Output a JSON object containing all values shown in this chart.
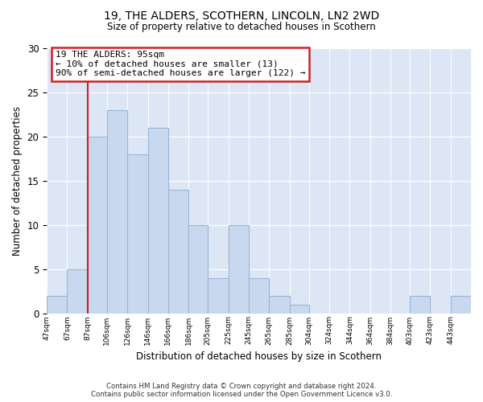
{
  "title": "19, THE ALDERS, SCOTHERN, LINCOLN, LN2 2WD",
  "subtitle": "Size of property relative to detached houses in Scothern",
  "xlabel": "Distribution of detached houses by size in Scothern",
  "ylabel": "Number of detached properties",
  "bar_color": "#c8d8ef",
  "bar_edge_color": "#9ab5d8",
  "background_color": "#ffffff",
  "grid_color": "#ffffff",
  "plot_bg_color": "#dce6f5",
  "annotation_box_edge": "#cc2222",
  "red_line_color": "#cc2222",
  "annotation_title": "19 THE ALDERS: 95sqm",
  "annotation_line1": "← 10% of detached houses are smaller (13)",
  "annotation_line2": "90% of semi-detached houses are larger (122) →",
  "footer_line1": "Contains HM Land Registry data © Crown copyright and database right 2024.",
  "footer_line2": "Contains public sector information licensed under the Open Government Licence v3.0.",
  "bins": [
    47,
    67,
    87,
    106,
    126,
    146,
    166,
    186,
    205,
    225,
    245,
    265,
    285,
    304,
    324,
    344,
    364,
    384,
    403,
    423,
    443
  ],
  "counts": [
    2,
    5,
    20,
    23,
    18,
    21,
    14,
    10,
    4,
    10,
    4,
    2,
    1,
    0,
    0,
    0,
    0,
    0,
    2,
    0,
    2
  ],
  "ylim": [
    0,
    30
  ],
  "yticks": [
    0,
    5,
    10,
    15,
    20,
    25,
    30
  ],
  "red_line_bin_index": 2
}
